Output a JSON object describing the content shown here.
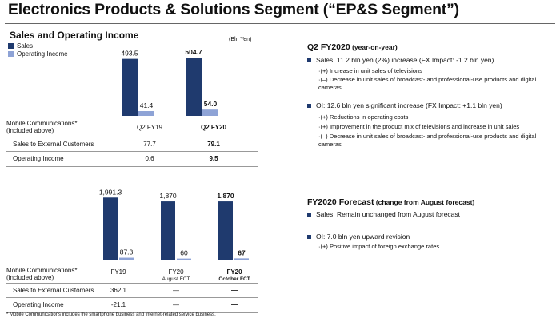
{
  "title": "Electronics Products & Solutions Segment (“EP&S Segment”)",
  "page_number": "",
  "top_section": {
    "title": "Sales and Operating Income",
    "unit": "(Bln Yen)",
    "legend": [
      {
        "label": "Sales",
        "color": "#1f3a6e"
      },
      {
        "label": "Operating Income",
        "color": "#8ea3d6"
      }
    ],
    "mc_label_line1": "Mobile Communications*",
    "mc_label_line2": "(included above)",
    "columns": [
      "Q2 FY19",
      "Q2 FY20"
    ],
    "rows": [
      {
        "label": "Sales to External Customers",
        "values": [
          "77.7",
          "79.1"
        ]
      },
      {
        "label": "Operating Income",
        "values": [
          "0.6",
          "9.5"
        ]
      }
    ]
  },
  "bottom_section": {
    "mc_label_line1": "Mobile Communications*",
    "mc_label_line2": "(included above)",
    "columns": [
      {
        "label": "FY19",
        "sub": ""
      },
      {
        "label": "FY20",
        "sub": "August FCT"
      },
      {
        "label": "FY20",
        "sub": "October FCT"
      }
    ],
    "rows": [
      {
        "label": "Sales to External Customers",
        "values": [
          "362.1",
          "—",
          "—"
        ]
      },
      {
        "label": "Operating Income",
        "values": [
          "-21.1",
          "—",
          "—"
        ]
      }
    ]
  },
  "chart_data": [
    {
      "type": "bar",
      "title": "",
      "categories": [
        "Q2 FY19",
        "Q2 FY20"
      ],
      "series": [
        {
          "name": "Sales",
          "values": [
            493.5,
            504.7
          ],
          "labels": [
            "493.5",
            "504.7"
          ],
          "color": "#1f3a6e"
        },
        {
          "name": "Operating Income",
          "values": [
            41.4,
            54.0
          ],
          "labels": [
            "41.4",
            "54.0"
          ],
          "color": "#8ea3d6"
        }
      ],
      "ylim": [
        0,
        560
      ],
      "unit": "(Bln Yen)",
      "grid": false,
      "legend": "top-left"
    },
    {
      "type": "bar",
      "title": "",
      "categories": [
        "FY19",
        "FY20 August FCT",
        "FY20 October FCT"
      ],
      "series": [
        {
          "name": "Sales",
          "values": [
            1991.3,
            1870,
            1870
          ],
          "labels": [
            "1,991.3",
            "1,870",
            "1,870"
          ],
          "color": "#1f3a6e"
        },
        {
          "name": "Operating Income",
          "values": [
            87.3,
            60,
            67
          ],
          "labels": [
            "87.3",
            "60",
            "67"
          ],
          "color": "#8ea3d6"
        }
      ],
      "ylim": [
        0,
        2150
      ],
      "grid": false
    }
  ],
  "q2": {
    "heading": "Q2 FY2020",
    "heading_small": " (year-on-year)",
    "sales_bullet": "Sales: 11.2 bln yen (2%) increase (FX Impact: -1.2 bln yen)",
    "sales_items": [
      "·(+) Increase in unit sales of televisions",
      "·(–) Decrease in unit sales of broadcast- and professional-use products and digital cameras"
    ],
    "oi_bullet": "OI: 12.6 bln yen significant increase (FX Impact: +1.1 bln yen)",
    "oi_items": [
      "·(+) Reductions in operating costs",
      "·(+) Improvement in the product mix of televisions and increase in unit sales",
      "·(–) Decrease in unit sales of broadcast- and professional-use products and digital cameras"
    ]
  },
  "forecast": {
    "heading": "FY2020 Forecast",
    "heading_small": "  (change from August forecast)",
    "sales_bullet": "Sales: Remain unchanged from August forecast",
    "oi_bullet": "OI: 7.0 bln yen upward revision",
    "oi_items": [
      "·(+) Positive impact of foreign exchange rates"
    ]
  },
  "footnote": "* Mobile Communications includes the smartphone business and internet-related service business."
}
